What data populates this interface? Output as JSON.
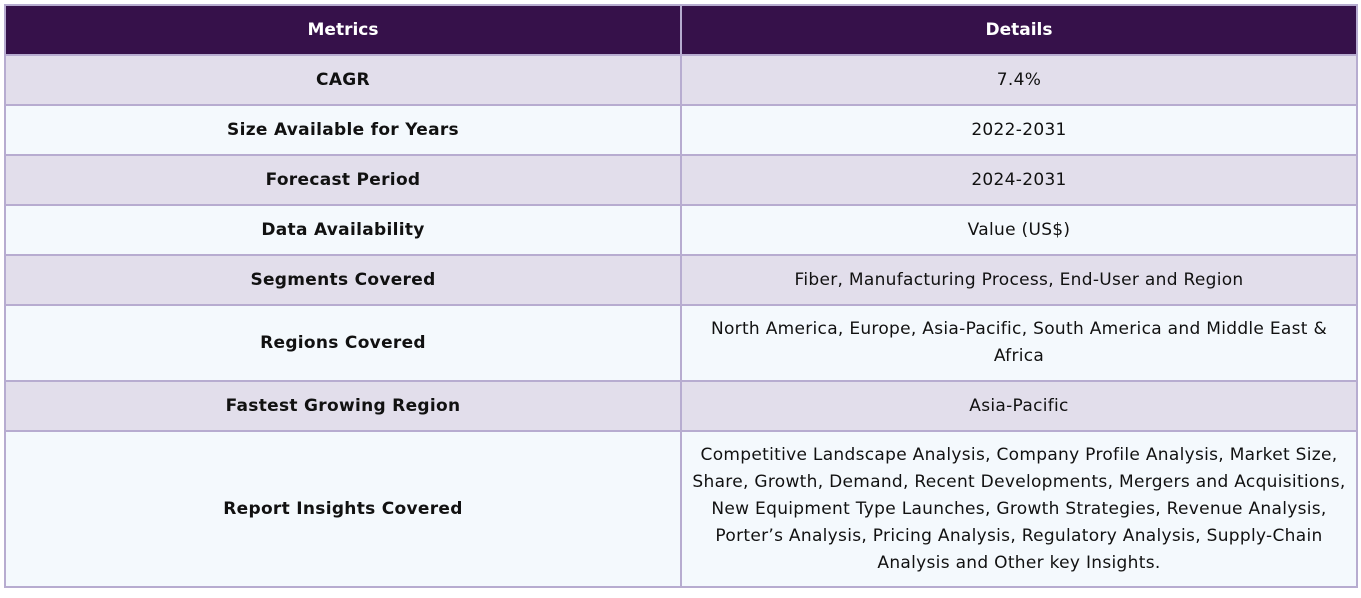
{
  "table": {
    "headers": {
      "metrics": "Metrics",
      "details": "Details"
    },
    "rows": [
      {
        "metric": "CAGR",
        "details": "7.4%"
      },
      {
        "metric": "Size Available for Years",
        "details": "2022-2031"
      },
      {
        "metric": "Forecast Period",
        "details": "2024-2031"
      },
      {
        "metric": "Data Availability",
        "details": "Value (US$)"
      },
      {
        "metric": "Segments Covered",
        "details": "Fiber, Manufacturing Process, End-User  and Region"
      },
      {
        "metric": "Regions Covered",
        "details": "North America, Europe, Asia-Pacific, South America and Middle East & Africa"
      },
      {
        "metric": "Fastest Growing Region",
        "details": "Asia-Pacific"
      },
      {
        "metric": "Report Insights Covered",
        "details": "Competitive Landscape Analysis, Company Profile Analysis, Market Size, Share, Growth, Demand, Recent Developments, Mergers and Acquisitions, New Equipment Type Launches, Growth Strategies, Revenue Analysis, Porter’s Analysis, Pricing Analysis, Regulatory Analysis, Supply-Chain Analysis and Other key Insights."
      }
    ]
  },
  "colors": {
    "header_bg": "#36114a",
    "row_alt_bg": "#e2deeb",
    "row_bg": "#f4f9fd",
    "border": "#b7acd0"
  }
}
